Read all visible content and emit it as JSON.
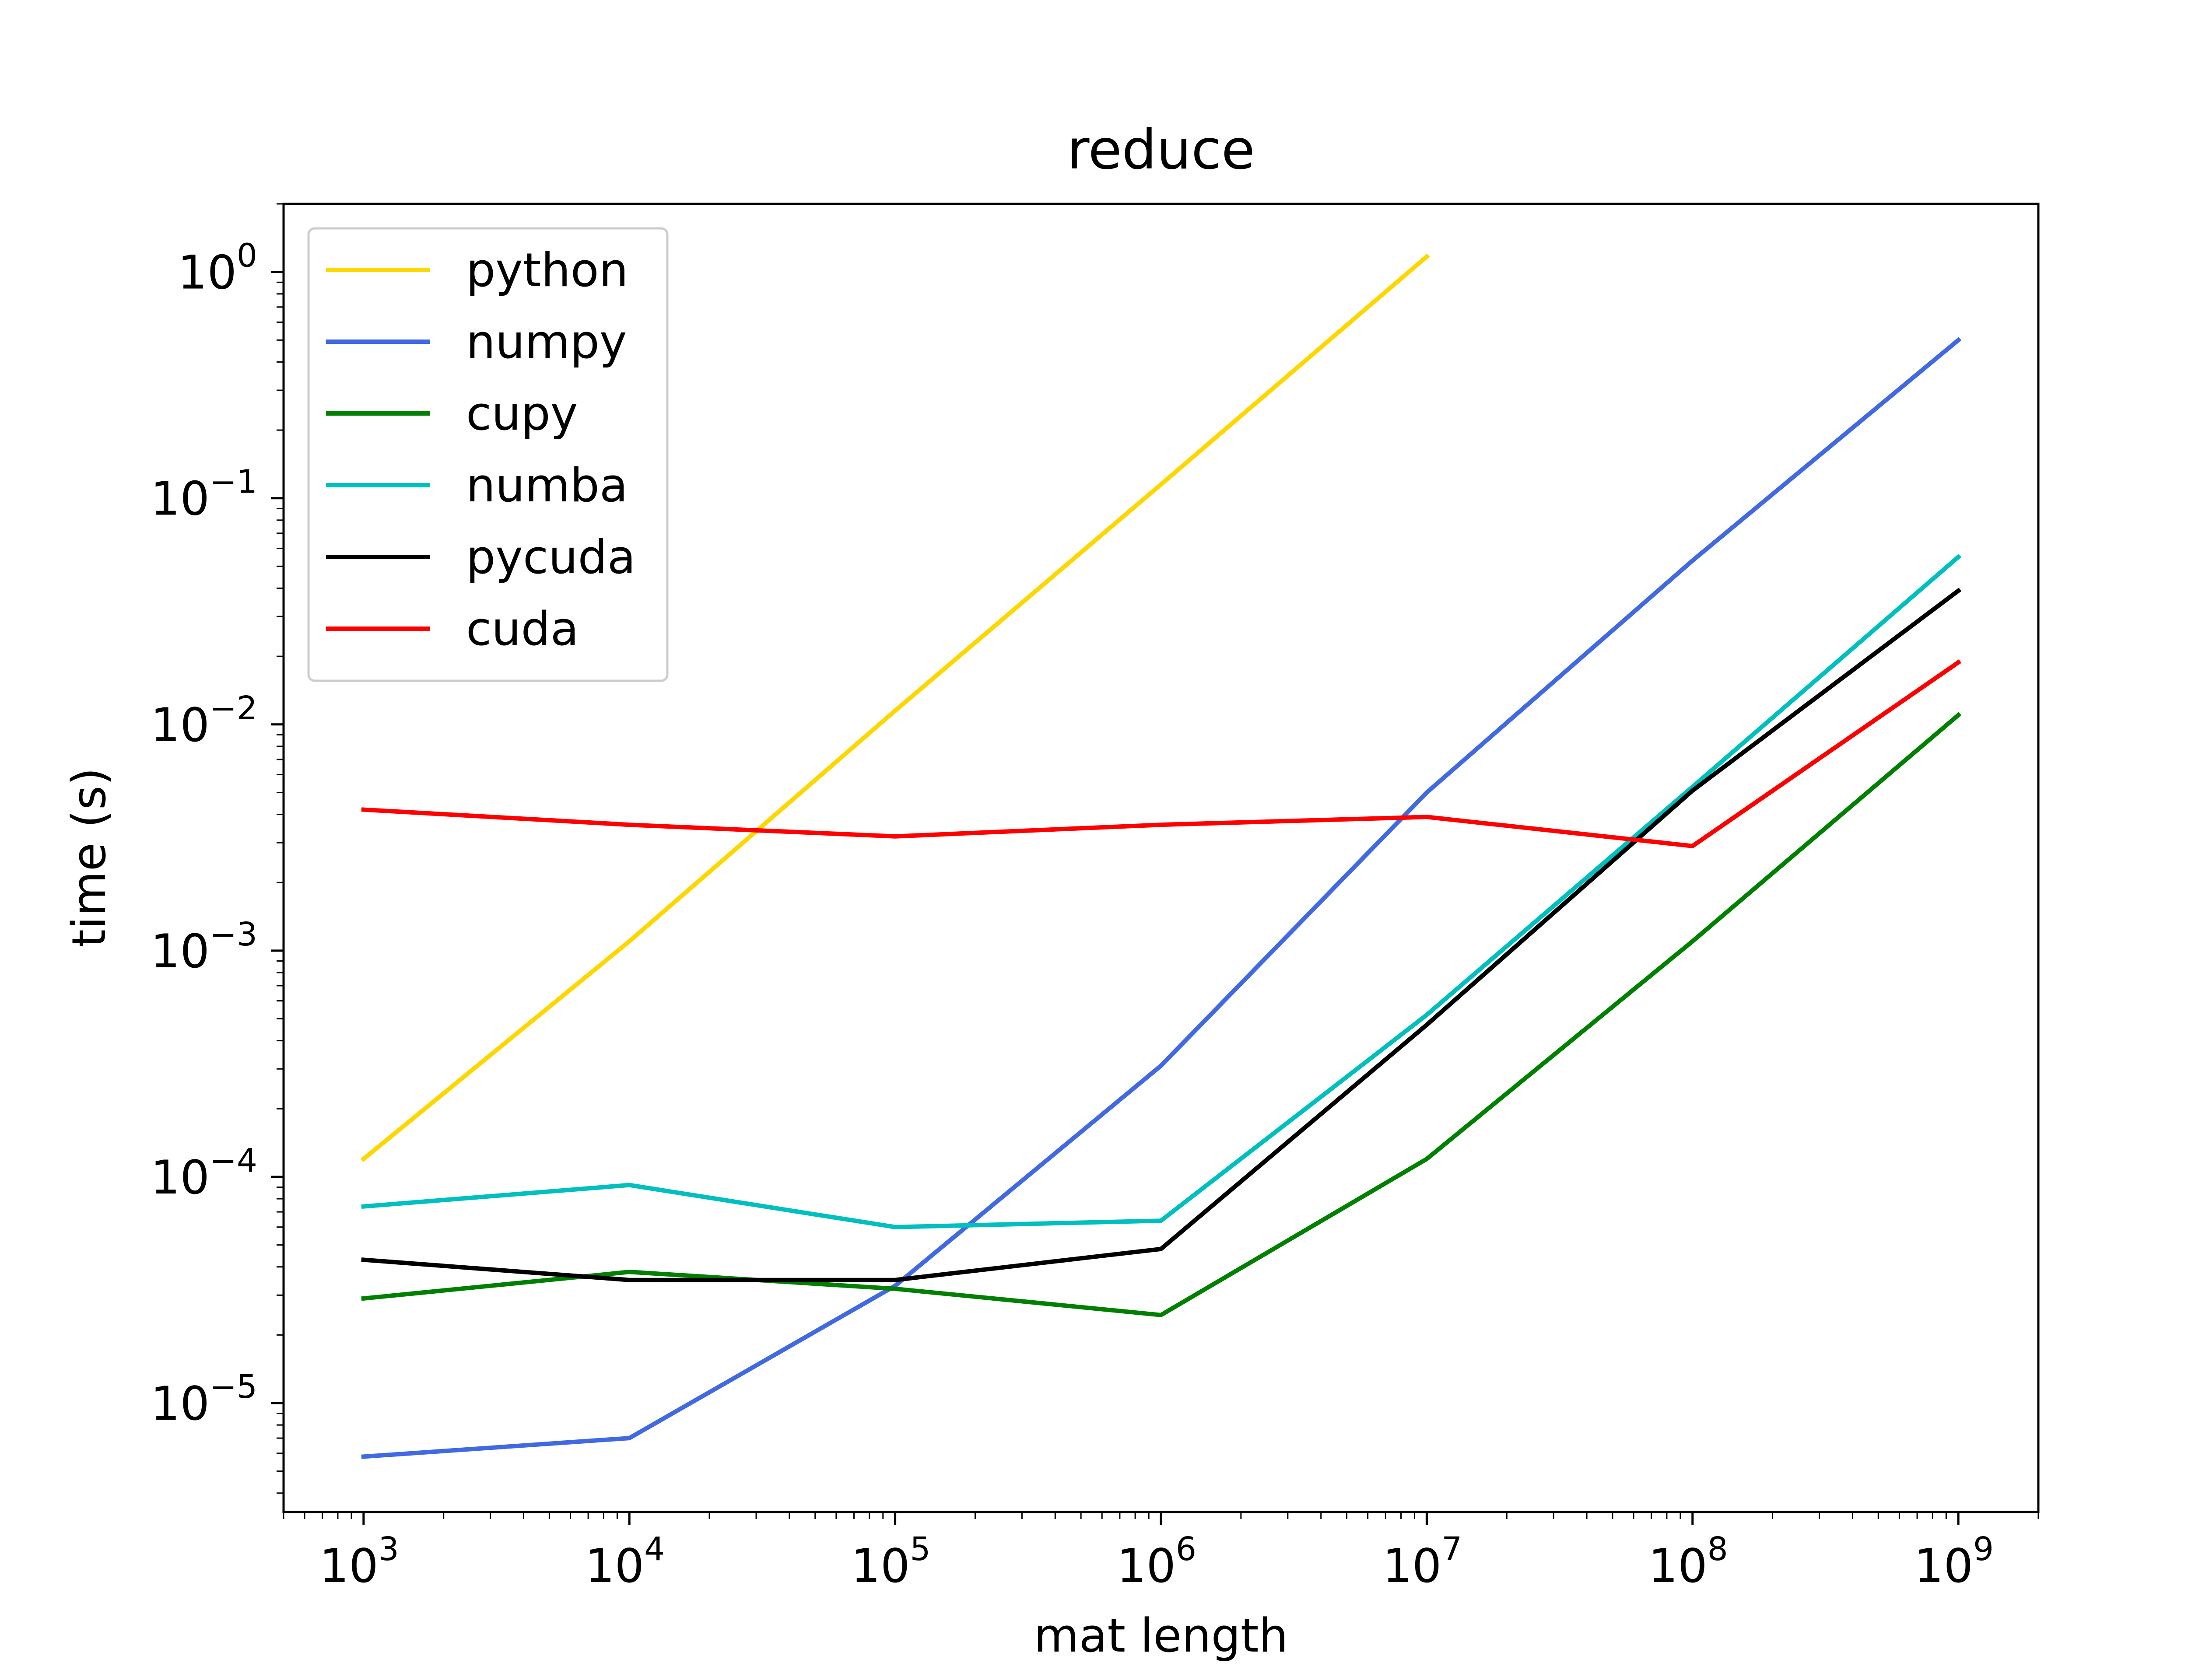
{
  "colors": {
    "python": "#ffd700",
    "numpy": "#4169e1",
    "cupy": "#008000",
    "numba": "#00bfbf",
    "pycuda": "#000000",
    "cuda": "#ff0000"
  },
  "chart_data": {
    "type": "line",
    "title": "reduce",
    "xlabel": "mat length",
    "ylabel": "time (s)",
    "xscale": "log",
    "yscale": "log",
    "xlim": [
      500,
      2000000000
    ],
    "ylim": [
      3.3e-06,
      2.0
    ],
    "grid": false,
    "legend_position": "upper left",
    "x_ticks": [
      {
        "base": "10",
        "exp": "3",
        "value": 1000
      },
      {
        "base": "10",
        "exp": "4",
        "value": 10000
      },
      {
        "base": "10",
        "exp": "5",
        "value": 100000
      },
      {
        "base": "10",
        "exp": "6",
        "value": 1000000
      },
      {
        "base": "10",
        "exp": "7",
        "value": 10000000
      },
      {
        "base": "10",
        "exp": "8",
        "value": 100000000
      },
      {
        "base": "10",
        "exp": "9",
        "value": 1000000000
      }
    ],
    "y_ticks": [
      {
        "base": "10",
        "exp": "0",
        "value": 1
      },
      {
        "base": "10",
        "exp": "−1",
        "value": 0.1
      },
      {
        "base": "10",
        "exp": "−2",
        "value": 0.01
      },
      {
        "base": "10",
        "exp": "−3",
        "value": 0.001
      },
      {
        "base": "10",
        "exp": "−4",
        "value": 0.0001
      },
      {
        "base": "10",
        "exp": "−5",
        "value": 1e-05
      }
    ],
    "series": [
      {
        "name": "python",
        "color": "#ffd700",
        "x": [
          1000,
          10000,
          100000,
          1000000,
          10000000
        ],
        "y": [
          0.00012,
          0.0011,
          0.0115,
          0.115,
          1.17
        ]
      },
      {
        "name": "numpy",
        "color": "#4169e1",
        "x": [
          1000,
          10000,
          100000,
          1000000,
          10000000,
          100000000,
          1000000000
        ],
        "y": [
          5.8e-06,
          7e-06,
          3.3e-05,
          0.00031,
          0.005,
          0.053,
          0.5
        ]
      },
      {
        "name": "cupy",
        "color": "#008000",
        "x": [
          1000,
          10000,
          100000,
          1000000,
          10000000,
          100000000,
          1000000000
        ],
        "y": [
          2.9e-05,
          3.8e-05,
          3.2e-05,
          2.45e-05,
          0.00012,
          0.0011,
          0.011
        ]
      },
      {
        "name": "numba",
        "color": "#00bfbf",
        "x": [
          1000,
          10000,
          100000,
          1000000,
          10000000,
          100000000,
          1000000000
        ],
        "y": [
          7.4e-05,
          9.2e-05,
          6e-05,
          6.4e-05,
          0.00052,
          0.0053,
          0.055
        ]
      },
      {
        "name": "pycuda",
        "color": "#000000",
        "x": [
          1000,
          10000,
          100000,
          1000000,
          10000000,
          100000000,
          1000000000
        ],
        "y": [
          4.3e-05,
          3.5e-05,
          3.5e-05,
          4.8e-05,
          0.00047,
          0.0051,
          0.039
        ]
      },
      {
        "name": "cuda",
        "color": "#ff0000",
        "x": [
          1000,
          10000,
          100000,
          1000000,
          10000000,
          100000000,
          1000000000
        ],
        "y": [
          0.0042,
          0.0036,
          0.0032,
          0.0036,
          0.0039,
          0.0029,
          0.0188
        ]
      }
    ]
  }
}
